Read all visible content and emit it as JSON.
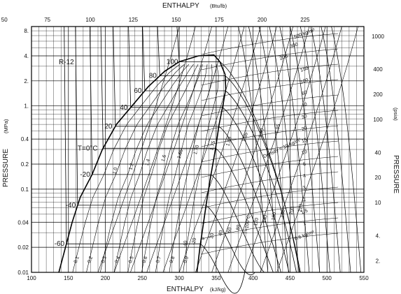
{
  "chart_data": {
    "type": "line",
    "title": "",
    "refrigerant": "R-12",
    "xlabel": "ENTHALPY",
    "xlabel_unit": "(kJ/kg)",
    "top_xlabel": "ENTHALPY",
    "top_xlabel_unit": "(Btu/lb)",
    "ylabel": "PRESSURE",
    "ylabel_unit": "(MPa)",
    "right_ylabel": "PRESSURE",
    "right_ylabel_unit": "(psia)",
    "xlim": [
      100,
      550
    ],
    "ylim": [
      0.01,
      9
    ],
    "yscale": "log",
    "grid": true,
    "x_ticks": [
      "100",
      "150",
      "200",
      "250",
      "300",
      "350",
      "400",
      "450",
      "500",
      "550"
    ],
    "top_ticks": [
      "50",
      "75",
      "100",
      "125",
      "150",
      "175",
      "200",
      "225"
    ],
    "y_ticks": [
      "8.",
      "4.",
      "2.",
      "1.",
      "0.4",
      "0.2",
      "0.1",
      "0.04",
      "0.02",
      "0.01"
    ],
    "right_ticks": [
      "1000",
      "400",
      "200",
      "100",
      "40",
      "20",
      "10",
      "4.",
      "2."
    ],
    "saturation_dome": {
      "liquid": [
        [
          137,
          0.01
        ],
        [
          146,
          0.02
        ],
        [
          155,
          0.04
        ],
        [
          166,
          0.08
        ],
        [
          182,
          0.15
        ],
        [
          196,
          0.3
        ],
        [
          215,
          0.6
        ],
        [
          236,
          1.0
        ],
        [
          258,
          1.7
        ],
        [
          280,
          2.6
        ],
        [
          300,
          3.4
        ],
        [
          326,
          4.0
        ],
        [
          347,
          4.1
        ]
      ],
      "vapor": [
        [
          347,
          4.1
        ],
        [
          355,
          3.4
        ],
        [
          362,
          2.4
        ],
        [
          363,
          1.6
        ],
        [
          359,
          1.0
        ],
        [
          354,
          0.6
        ],
        [
          349,
          0.3
        ],
        [
          343,
          0.15
        ],
        [
          338,
          0.08
        ],
        [
          333,
          0.04
        ],
        [
          328,
          0.02
        ],
        [
          324,
          0.01
        ]
      ]
    },
    "isotherm_labels_left": [
      "-60",
      "-40",
      "-20",
      "T=0°C",
      "20",
      "40",
      "60",
      "80",
      "100"
    ],
    "isotherm_labels_bottom": [
      "-40",
      "-20",
      "0",
      "20",
      "40",
      "60",
      "80",
      "T=100°C",
      "120",
      "140",
      "160",
      "180",
      "200",
      "220"
    ],
    "quality_labels": [
      "0.1",
      "0.2",
      "0.3",
      "0.4",
      "0.5",
      "0.6",
      "0.7",
      "0.8",
      "0.9"
    ],
    "entropy_labels": [
      "1.0",
      "1.2",
      "1.4",
      "1.6",
      "1.65",
      "1.70",
      "1.75",
      "1.80",
      "1.85",
      "1.90",
      "1.95"
    ],
    "density_labels": [
      "500 kg/m³",
      "300",
      "200",
      "150",
      "100",
      "60",
      "40",
      "30",
      "20",
      "15",
      "10",
      "6",
      "4",
      "3",
      "2",
      "1.5",
      "1",
      "0.6 kg/m³",
      "Density = 10 kg/m³"
    ]
  }
}
